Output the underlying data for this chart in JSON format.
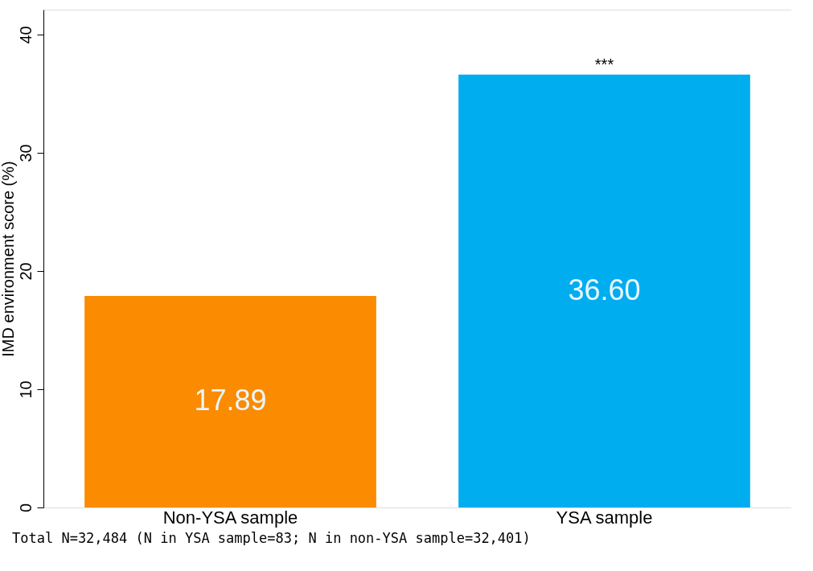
{
  "chart_data": {
    "type": "bar",
    "ylabel": "IMD environment score (%)",
    "categories": [
      "Non-YSA sample",
      "YSA sample"
    ],
    "values": [
      17.89,
      36.6
    ],
    "colors": [
      "#fb8b00",
      "#00adef"
    ],
    "value_labels": [
      "17.89",
      "36.60"
    ],
    "ylim": [
      0,
      42.1
    ],
    "yticks": [
      0,
      10,
      20,
      30,
      40
    ],
    "grid": false,
    "legend": false,
    "annotations": [
      {
        "text": "***",
        "x": "YSA sample",
        "y": 36.6
      },
      "Total N=32,484 (N in YSA sample=83; N in non-YSA sample=32,401)"
    ]
  }
}
